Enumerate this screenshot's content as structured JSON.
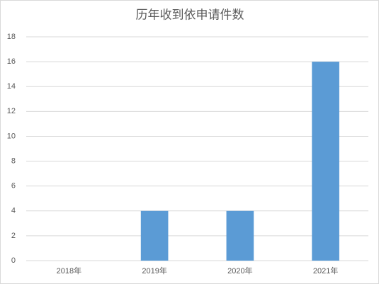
{
  "chart_data": {
    "type": "bar",
    "title": "历年收到依申请件数",
    "categories": [
      "2018年",
      "2019年",
      "2020年",
      "2021年"
    ],
    "values": [
      0,
      4,
      4,
      16
    ],
    "color": "#5b9bd5",
    "ylim": [
      0,
      18
    ],
    "yticks": [
      0,
      2,
      4,
      6,
      8,
      10,
      12,
      14,
      16,
      18
    ],
    "grid": true
  }
}
